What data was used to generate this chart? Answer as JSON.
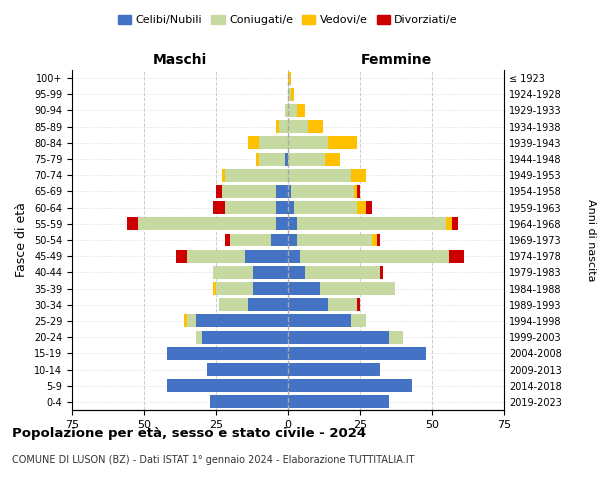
{
  "age_groups": [
    "0-4",
    "5-9",
    "10-14",
    "15-19",
    "20-24",
    "25-29",
    "30-34",
    "35-39",
    "40-44",
    "45-49",
    "50-54",
    "55-59",
    "60-64",
    "65-69",
    "70-74",
    "75-79",
    "80-84",
    "85-89",
    "90-94",
    "95-99",
    "100+"
  ],
  "birth_years": [
    "2019-2023",
    "2014-2018",
    "2009-2013",
    "2004-2008",
    "1999-2003",
    "1994-1998",
    "1989-1993",
    "1984-1988",
    "1979-1983",
    "1974-1978",
    "1969-1973",
    "1964-1968",
    "1959-1963",
    "1954-1958",
    "1949-1953",
    "1944-1948",
    "1939-1943",
    "1934-1938",
    "1929-1933",
    "1924-1928",
    "≤ 1923"
  ],
  "colors": {
    "celibi": "#4472c4",
    "coniugati": "#c5d9a0",
    "vedovi": "#ffc000",
    "divorziati": "#cc0000"
  },
  "maschi": {
    "celibi": [
      27,
      42,
      28,
      42,
      30,
      32,
      14,
      12,
      12,
      15,
      6,
      4,
      4,
      4,
      0,
      1,
      0,
      0,
      0,
      0,
      0
    ],
    "coniugati": [
      0,
      0,
      0,
      0,
      2,
      3,
      10,
      13,
      14,
      20,
      14,
      48,
      18,
      19,
      22,
      9,
      10,
      3,
      1,
      0,
      0
    ],
    "vedovi": [
      0,
      0,
      0,
      0,
      0,
      1,
      0,
      1,
      0,
      0,
      0,
      0,
      0,
      0,
      1,
      1,
      4,
      1,
      0,
      0,
      0
    ],
    "divorziati": [
      0,
      0,
      0,
      0,
      0,
      0,
      0,
      0,
      0,
      4,
      2,
      4,
      4,
      2,
      0,
      0,
      0,
      0,
      0,
      0,
      0
    ]
  },
  "femmine": {
    "celibi": [
      35,
      43,
      32,
      48,
      35,
      22,
      14,
      11,
      6,
      4,
      3,
      3,
      2,
      1,
      0,
      0,
      0,
      0,
      0,
      0,
      0
    ],
    "coniugati": [
      0,
      0,
      0,
      0,
      5,
      5,
      10,
      26,
      26,
      52,
      26,
      52,
      22,
      22,
      22,
      13,
      14,
      7,
      3,
      1,
      0
    ],
    "vedovi": [
      0,
      0,
      0,
      0,
      0,
      0,
      0,
      0,
      0,
      0,
      2,
      2,
      3,
      1,
      5,
      5,
      10,
      5,
      3,
      1,
      1
    ],
    "divorziati": [
      0,
      0,
      0,
      0,
      0,
      0,
      1,
      0,
      1,
      5,
      1,
      2,
      2,
      1,
      0,
      0,
      0,
      0,
      0,
      0,
      0
    ]
  },
  "xlim": 75,
  "title": "Popolazione per età, sesso e stato civile - 2024",
  "subtitle": "COMUNE DI LUSON (BZ) - Dati ISTAT 1° gennaio 2024 - Elaborazione TUTTITALIA.IT",
  "xlabel_left": "Maschi",
  "xlabel_right": "Femmine",
  "ylabel": "Fasce di età",
  "ylabel_right": "Anni di nascita",
  "bg_color": "#ffffff",
  "grid_color": "#cccccc",
  "legend_labels": [
    "Celibi/Nubili",
    "Coniugati/e",
    "Vedovi/e",
    "Divorziati/e"
  ]
}
